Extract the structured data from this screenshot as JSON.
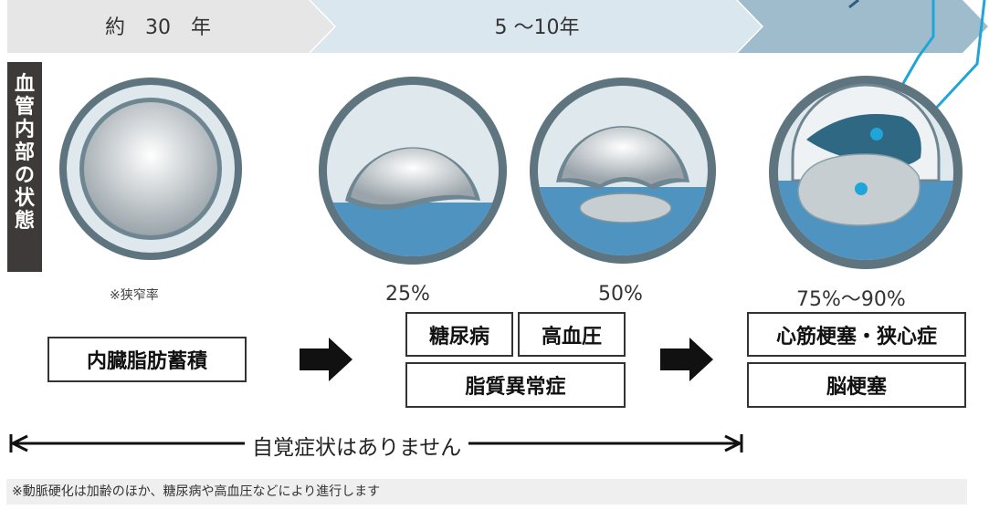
{
  "timeline_header": {
    "segment1": "約　30　年",
    "segment2": "5 〜10年",
    "segment3": ""
  },
  "side_label": {
    "chars": [
      "血",
      "管",
      "内",
      "部",
      "の",
      "状",
      "態"
    ]
  },
  "stenosis_note": "※狭窄率",
  "percentages": {
    "p1": "25%",
    "p2": "50%",
    "p3": "75%〜90%"
  },
  "boxes": {
    "visceral_fat": "内臓脂肪蓄積",
    "diabetes": "糖尿病",
    "hypertension": "高血圧",
    "dyslipidemia": "脂質異常症",
    "mi_angina": "心筋梗塞・狭心症",
    "stroke": "脳梗塞"
  },
  "timeline_bottom": "自覚症状はありません",
  "footnote": "※動脈硬化は加齢のほか、糖尿病や高血圧などにより進行します",
  "colors": {
    "chevron1": "#e6e6e6",
    "chevron2": "#dbe7ef",
    "chevron3": "#9fbccc",
    "plaque_blue": "#4f93c1",
    "thrombus": "#2f6883",
    "callout_line": "#1fa5d8"
  }
}
